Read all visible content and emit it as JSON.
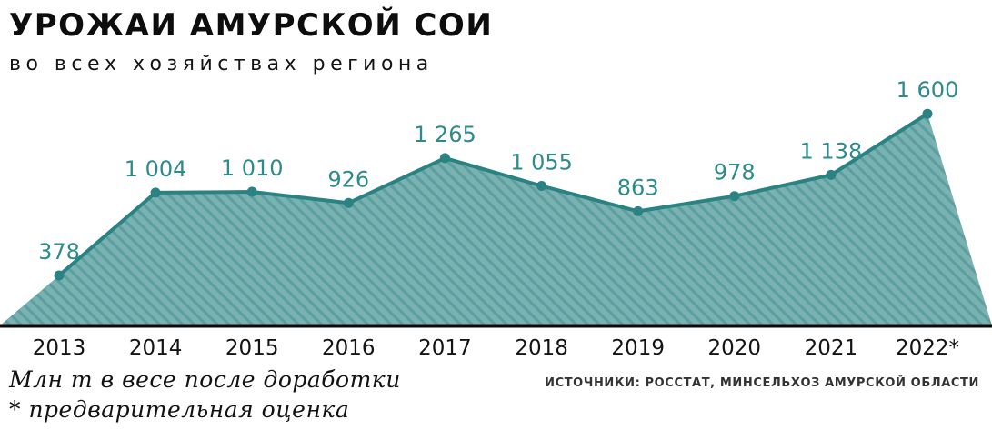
{
  "header": {
    "title": "УРОЖАИ АМУРСКОЙ СОИ",
    "subtitle": "во всех хозяйствах региона"
  },
  "chart_data": {
    "type": "area",
    "title": "УРОЖАИ АМУРСКОЙ СОИ",
    "subtitle": "во всех хозяйствах региона",
    "categories": [
      "2013",
      "2014",
      "2015",
      "2016",
      "2017",
      "2018",
      "2019",
      "2020",
      "2021",
      "2022*"
    ],
    "values": [
      378,
      1004,
      1010,
      926,
      1265,
      1055,
      863,
      978,
      1138,
      1600
    ],
    "value_labels": [
      "378",
      "1 004",
      "1 010",
      "926",
      "1 265",
      "1 055",
      "863",
      "978",
      "1 138",
      "1 600"
    ],
    "xlabel": "",
    "ylabel": "Млн т в весе после доработки",
    "ylim": [
      0,
      1700
    ],
    "grid": false,
    "legend": "none",
    "colors": {
      "line": "#2b8282",
      "dot": "#2b8282",
      "fill": "#7ab2b2",
      "hatch": "#5d9fa0",
      "label": "#2e8b8b",
      "axis": "#0b0b0b",
      "year": "#141414"
    }
  },
  "footer": {
    "note_line1": "Млн т в весе после доработки",
    "note_line2": "* предварительная оценка",
    "source": "ИСТОЧНИКИ: РОССТАТ, МИНСЕЛЬХОЗ АМУРСКОЙ ОБЛАСТИ"
  }
}
